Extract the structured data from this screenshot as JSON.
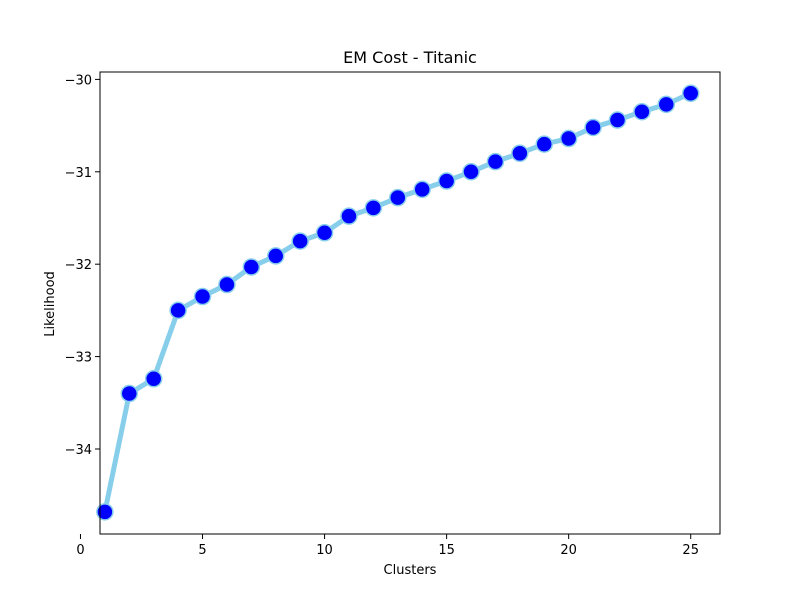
{
  "chart_data": {
    "type": "line",
    "title": "EM Cost - Titanic",
    "xlabel": "Clusters",
    "ylabel": "Likelihood",
    "xlim": [
      0.8,
      26.2
    ],
    "ylim": [
      -34.92,
      -29.92
    ],
    "xticks": [
      0,
      5,
      10,
      15,
      20,
      25
    ],
    "yticks": [
      -34,
      -33,
      -32,
      -31,
      -30
    ],
    "grid": false,
    "series": [
      {
        "line_color": "#87ceeb",
        "marker_color": "#0000ff",
        "marker_edge_color": "#87ceeb",
        "x": [
          1,
          2,
          3,
          4,
          5,
          6,
          7,
          8,
          9,
          10,
          11,
          12,
          13,
          14,
          15,
          16,
          17,
          18,
          19,
          20,
          21,
          22,
          23,
          24,
          25
        ],
        "y": [
          -34.68,
          -33.4,
          -33.24,
          -32.5,
          -32.35,
          -32.22,
          -32.03,
          -31.91,
          -31.75,
          -31.66,
          -31.48,
          -31.39,
          -31.28,
          -31.19,
          -31.1,
          -31.0,
          -30.89,
          -30.8,
          -30.7,
          -30.64,
          -30.52,
          -30.44,
          -30.35,
          -30.27,
          -30.15
        ]
      }
    ]
  }
}
